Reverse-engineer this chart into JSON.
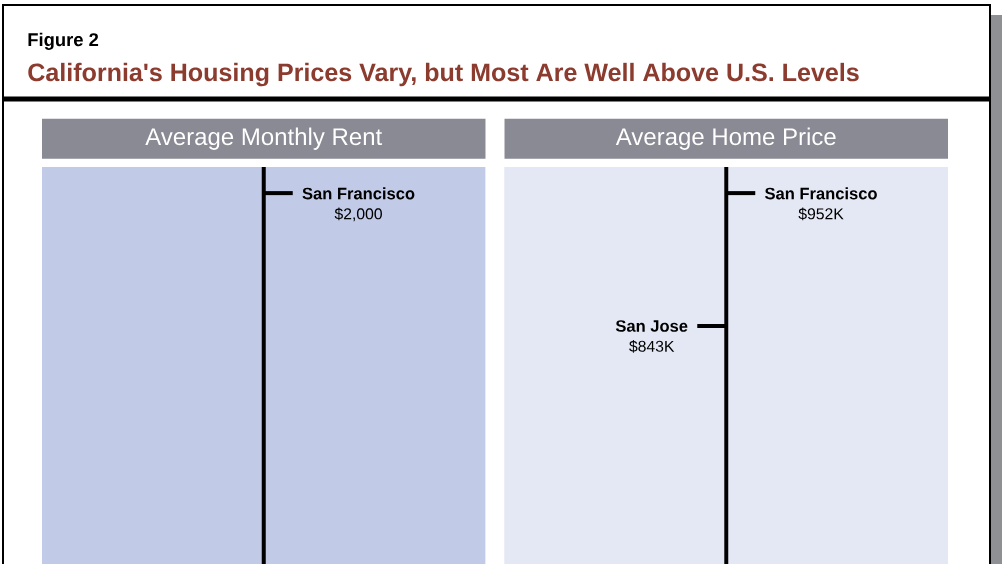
{
  "chart_data": [
    {
      "type": "other",
      "title": "Average Monthly Rent",
      "annotations": [
        "Figure 2",
        "California's Housing Prices Vary, but Most Are Well Above U.S. Levels"
      ],
      "categories": [
        null
      ],
      "series": [
        {
          "name": "San Francisco",
          "color": "#000000",
          "values": [
            2000
          ],
          "value_labels": [
            "$2,000"
          ]
        }
      ]
    },
    {
      "type": "other",
      "title": "Average Home Price",
      "categories": [
        null
      ],
      "series": [
        {
          "name": "San Francisco",
          "color": "#000000",
          "values": [
            952
          ],
          "value_labels": [
            "$952K"
          ]
        },
        {
          "name": "San Jose",
          "color": "#000000",
          "values": [
            843
          ],
          "value_labels": [
            "$843K"
          ]
        }
      ]
    }
  ]
}
